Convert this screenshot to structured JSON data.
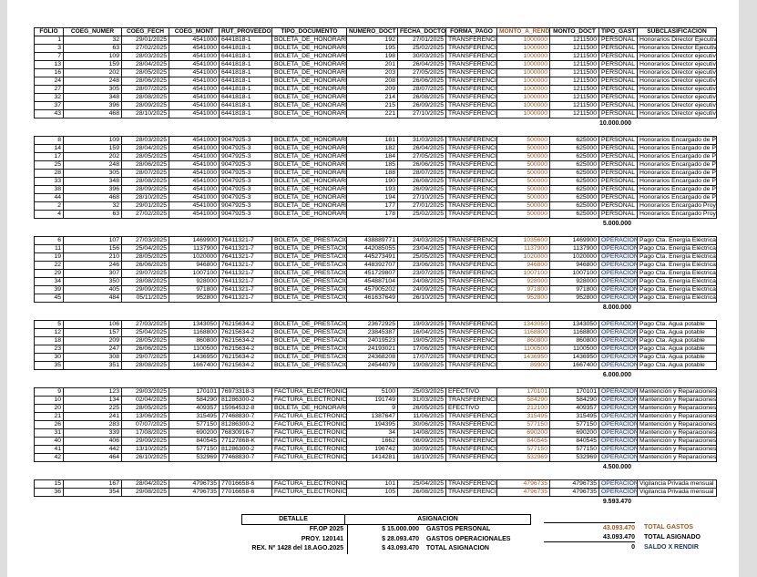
{
  "page": {
    "background": "#ffffff",
    "edge_color": "#dedede",
    "accent_color": "#a5561f",
    "navy_color": "#1f3864"
  },
  "table": {
    "columns": [
      {
        "key": "folio",
        "label": "FOLIO",
        "align": "right"
      },
      {
        "key": "coeg_numer",
        "label": "COEG_NUMER",
        "align": "right"
      },
      {
        "key": "coeg_fech",
        "label": "COEG_FECH",
        "align": "right"
      },
      {
        "key": "coeg_mont",
        "label": "COEG_MONT",
        "align": "right"
      },
      {
        "key": "rut_proveedo",
        "label": "RUT_PROVEEDO",
        "align": "left"
      },
      {
        "key": "tipo_documento",
        "label": "TIPO_DOCUMENTO",
        "align": "left"
      },
      {
        "key": "numero_doct",
        "label": "NUMERO_DOCT",
        "align": "right"
      },
      {
        "key": "fecha_docto",
        "label": "FECHA_DOCTO",
        "align": "right"
      },
      {
        "key": "forma_pago",
        "label": "FORMA_PAGO",
        "align": "left"
      },
      {
        "key": "monto_a_rendi",
        "label": "MONTO_A_RENDI",
        "align": "right",
        "accent": true
      },
      {
        "key": "monto_doct",
        "label": "MONTO_DOCT",
        "align": "right"
      },
      {
        "key": "tipo_gast",
        "label": "TIPO_GAST",
        "align": "left"
      },
      {
        "key": "subclasificacion",
        "label": "SUBCLASIFICACION",
        "align": "left"
      }
    ],
    "blocks": [
      {
        "subtotal": "10.000.000",
        "rows": [
          [
            "1",
            "32",
            "29/01/2025",
            "4541000",
            "6441818-1",
            "BOLETA_DE_HONORARIOS_ELE",
            "192",
            "27/01/2025",
            "TRANSFERENCIA",
            "1000000",
            "1211500",
            "PERSONAL",
            "Honorarios Director Ejecutivo"
          ],
          [
            "3",
            "63",
            "27/02/2025",
            "4541000",
            "6441818-1",
            "BOLETA_DE_HONORARIOS_ELE",
            "195",
            "25/02/2025",
            "TRANSFERENCIA",
            "1000000",
            "1211500",
            "PERSONAL",
            "Honorarios Director Ejecutivo"
          ],
          [
            "7",
            "109",
            "28/03/2025",
            "4541000",
            "6441818-1",
            "BOLETA_DE_HONORARIOS_ELE",
            "198",
            "30/03/2025",
            "TRANSFERENCIA",
            "1000000",
            "1211500",
            "PERSONAL",
            "Honorarios Director ejecutivo"
          ],
          [
            "13",
            "159",
            "28/04/2025",
            "4541000",
            "6441818-1",
            "BOLETA_DE_HONORARIOS_ELE",
            "201",
            "26/04/2025",
            "TRANSFERENCIA",
            "1000000",
            "1211500",
            "PERSONAL",
            "Honorarios Director ejecutivo"
          ],
          [
            "16",
            "202",
            "28/05/2025",
            "4541000",
            "6441818-1",
            "BOLETA_DE_HONORARIOS_ELE",
            "203",
            "27/05/2025",
            "TRANSFERENCIA",
            "1000000",
            "1211500",
            "PERSONAL",
            "Honorarios Director ejecutivo"
          ],
          [
            "24",
            "248",
            "28/06/2025",
            "4541000",
            "6441818-1",
            "BOLETA_DE_HONORARIOS_ELE",
            "208",
            "26/06/2025",
            "TRANSFERENCIA",
            "1000000",
            "1211500",
            "PERSONAL",
            "Honorarios Director ejecutivo"
          ],
          [
            "27",
            "305",
            "28/07/2025",
            "4541000",
            "6441818-1",
            "BOLETA_DE_HONORARIOS_ELE",
            "209",
            "28/07/2025",
            "TRANSFERENCIA",
            "1000000",
            "1211500",
            "PERSONAL",
            "Honorarios Director ejecutivo"
          ],
          [
            "32",
            "348",
            "28/08/2025",
            "4541000",
            "6441818-1",
            "BOLETA_DE_HONORARIOS_ELE",
            "214",
            "26/08/2025",
            "TRANSFERENCIA",
            "1000000",
            "1211500",
            "PERSONAL",
            "Honorarios Director ejecutivo"
          ],
          [
            "37",
            "396",
            "28/09/2025",
            "4541000",
            "6441818-1",
            "BOLETA_DE_HONORARIOS_ELE",
            "215",
            "26/09/2025",
            "TRANSFERENCIA",
            "1000000",
            "1211500",
            "PERSONAL",
            "Honorarios Director ejecutivo"
          ],
          [
            "43",
            "468",
            "28/10/2025",
            "4541000",
            "6441818-1",
            "BOLETA_DE_HONORARIOS_ELE",
            "221",
            "27/10/2025",
            "TRANSFERENCIA",
            "1000000",
            "1211500",
            "PERSONAL",
            "Honorarios Director ejecutivo"
          ]
        ]
      },
      {
        "subtotal": "5.000.000",
        "rows": [
          [
            "8",
            "109",
            "28/03/2025",
            "4541000",
            "9047925-3",
            "BOLETA_DE_HONORARIOS_ELE",
            "181",
            "31/03/2025",
            "TRANSFERENCIA",
            "500000",
            "625000",
            "PERSONAL",
            "Honorarios Encargado de Proye"
          ],
          [
            "14",
            "159",
            "28/04/2025",
            "4541000",
            "9047925-3",
            "BOLETA_DE_HONORARIOS_ELE",
            "182",
            "26/04/2025",
            "TRANSFERENCIA",
            "500000",
            "625000",
            "PERSONAL",
            "Honorarios Encargado de Proye"
          ],
          [
            "17",
            "202",
            "28/05/2025",
            "4541000",
            "9047925-3",
            "BOLETA_DE_HONORARIOS_ELE",
            "184",
            "27/05/2025",
            "TRANSFERENCIA",
            "500000",
            "625000",
            "PERSONAL",
            "Honorarios Encargado de Proye"
          ],
          [
            "25",
            "248",
            "28/06/2025",
            "4541000",
            "9047925-3",
            "BOLETA_DE_HONORARIOS_ELE",
            "185",
            "26/06/2025",
            "TRANSFERENCIA",
            "500000",
            "625000",
            "PERSONAL",
            "Honorarios Encargado de Proye"
          ],
          [
            "28",
            "305",
            "28/07/2025",
            "4541000",
            "9047925-3",
            "BOLETA_DE_HONORARIOS_ELE",
            "188",
            "28/07/2025",
            "TRANSFERENCIA",
            "500000",
            "625000",
            "PERSONAL",
            "Honorarios Encargado de Proye"
          ],
          [
            "33",
            "348",
            "28/08/2025",
            "4541000",
            "9047925-3",
            "BOLETA_DE_HONORARIOS_ELE",
            "190",
            "26/08/2025",
            "TRANSFERENCIA",
            "500000",
            "625000",
            "PERSONAL",
            "Honorarios Encargado de Proye"
          ],
          [
            "38",
            "396",
            "28/09/2025",
            "4541000",
            "9047925-3",
            "BOLETA_DE_HONORARIOS_ELE",
            "193",
            "26/09/2025",
            "TRANSFERENCIA",
            "500000",
            "625000",
            "PERSONAL",
            "Honorarios Encargado de Proye"
          ],
          [
            "44",
            "468",
            "28/10/2025",
            "4541000",
            "9047925-3",
            "BOLETA_DE_HONORARIOS_ELE",
            "194",
            "27/10/2025",
            "TRANSFERENCIA",
            "500000",
            "625000",
            "PERSONAL",
            "Honorarios Encargado de Proye"
          ],
          [
            "2",
            "32",
            "29/01/2025",
            "4541000",
            "9047925-3",
            "BOLETA_DE_HONORARIOS_ELE",
            "177",
            "27/01/2025",
            "TRANSFERENCIA",
            "500000",
            "625000",
            "PERSONAL",
            "Honorarios Encargado Proyecto"
          ],
          [
            "4",
            "63",
            "27/02/2025",
            "4541000",
            "9047925-3",
            "BOLETA_DE_HONORARIOS_ELE",
            "178",
            "25/02/2025",
            "TRANSFERENCIA",
            "500000",
            "625000",
            "PERSONAL",
            "Honorarios Encargado Proyecto"
          ]
        ]
      },
      {
        "subtotal": "8.000.000",
        "rows": [
          [
            "6",
            "107",
            "27/03/2025",
            "1469900",
            "76411321-7",
            "BOLETA_DE_PRESTACION_SERV",
            "438889771",
            "24/03/2025",
            "TRANSFERENCIA",
            "1035600",
            "1469900",
            "OPERACION",
            "Pago Cta. Energía Eléctrica"
          ],
          [
            "11",
            "156",
            "25/04/2025",
            "1137900",
            "76411321-7",
            "BOLETA_DE_PRESTACION_SERV",
            "442085055",
            "23/04/2025",
            "TRANSFERENCIA",
            "1137900",
            "1137900",
            "OPERACION",
            "Pago Cta. Energía Eléctrica"
          ],
          [
            "19",
            "210",
            "28/05/2025",
            "1020000",
            "76411321-7",
            "BOLETA_DE_PRESTACION_SERV",
            "445273491",
            "25/05/2025",
            "TRANSFERENCIA",
            "1020000",
            "1020000",
            "OPERACION",
            "Pago Cta. Energía Eléctrica"
          ],
          [
            "22",
            "246",
            "26/06/2025",
            "946800",
            "76411321-7",
            "BOLETA_DE_PRESTACION_SERV",
            "448392707",
            "23/06/2025",
            "TRANSFERENCIA",
            "946800",
            "946800",
            "OPERACION",
            "Pago Cta. Energía Eléctrica"
          ],
          [
            "29",
            "307",
            "29/07/2025",
            "1007100",
            "76411321-7",
            "BOLETA_DE_PRESTACION_SERV",
            "451729807",
            "23/07/2025",
            "TRANSFERENCIA",
            "1007100",
            "1007100",
            "OPERACION",
            "Pago Cta. Energía Eléctrica"
          ],
          [
            "34",
            "350",
            "28/08/2025",
            "928000",
            "76411321-7",
            "BOLETA_DE_PRESTACION_SERV",
            "454887104",
            "24/08/2025",
            "TRANSFERENCIA",
            "928000",
            "928000",
            "OPERACION",
            "Pago Cta. Energía Eléctrica"
          ],
          [
            "39",
            "405",
            "29/09/2025",
            "971800",
            "76411321-7",
            "BOLETA_DE_PRESTACION_SERV",
            "457905202",
            "24/09/2025",
            "TRANSFERENCIA",
            "971800",
            "971800",
            "OPERACION",
            "Pago Cta. Energía Eléctrica"
          ],
          [
            "45",
            "484",
            "05/11/2025",
            "952800",
            "76411321-7",
            "BOLETA_DE_PRESTACION_SERV",
            "461637649",
            "26/10/2025",
            "TRANSFERENCIA",
            "952800",
            "952800",
            "OPERACION",
            "Pago Cta. Energía Eléctrica"
          ]
        ]
      },
      {
        "subtotal": "6.000.000",
        "rows": [
          [
            "5",
            "106",
            "27/03/2025",
            "1343050",
            "76215634-2",
            "BOLETA_DE_PRESTACION_SERV",
            "23672925",
            "19/03/2025",
            "TRANSFERENCIA",
            "1343050",
            "1343050",
            "OPERACION",
            "Pago Cta. Agua potable"
          ],
          [
            "12",
            "157",
            "25/04/2025",
            "1168800",
            "76215634-2",
            "BOLETA_DE_PRESTACION_SERV",
            "23845387",
            "16/04/2025",
            "TRANSFERENCIA",
            "1168800",
            "1168800",
            "OPERACION",
            "Pago Cta. Agua potable"
          ],
          [
            "18",
            "209",
            "28/05/2025",
            "860800",
            "76215634-2",
            "BOLETA_DE_PRESTACION_SERV",
            "24019523",
            "19/05/2025",
            "TRANSFERENCIA",
            "860800",
            "860800",
            "OPERACION",
            "Pago Cta. Agua potable"
          ],
          [
            "23",
            "247",
            "26/06/2025",
            "1100500",
            "76215634-2",
            "BOLETA_DE_PRESTACION_SERV",
            "24193021",
            "17/06/2025",
            "TRANSFERENCIA",
            "1100500",
            "1100500",
            "OPERACION",
            "Pago Cta. Agua potable"
          ],
          [
            "30",
            "308",
            "29/07/2025",
            "1436950",
            "76215634-2",
            "BOLETA_DE_PRESTACION_SERV",
            "24368208",
            "17/07/2025",
            "TRANSFERENCIA",
            "1436950",
            "1436950",
            "OPERACION",
            "Pago Cta. Agua potable"
          ],
          [
            "35",
            "351",
            "28/08/2025",
            "1667400",
            "76215634-2",
            "BOLETA_DE_PRESTACION_SERV",
            "24544079",
            "19/08/2025",
            "TRANSFERENCIA",
            "89900",
            "1667400",
            "OPERACION",
            "Pago Cta. Agua potable"
          ]
        ]
      },
      {
        "subtotal": "4.500.000",
        "rows": [
          [
            "9",
            "123",
            "29/03/2025",
            "170101",
            "76973318-3",
            "FACTURA_ELECTRONICA",
            "5100",
            "25/03/2025",
            "EFECTIVO",
            "170101",
            "170101",
            "OPERACION",
            "Mantención y Reparaciones"
          ],
          [
            "10",
            "134",
            "02/04/2025",
            "584290",
            "81286300-2",
            "FACTURA_ELECTRONICA",
            "191749",
            "31/03/2025",
            "TRANSFERENCIA",
            "584290",
            "584290",
            "OPERACION",
            "Mantención y Reparaciones"
          ],
          [
            "20",
            "225",
            "28/05/2025",
            "409357",
            "15064532-8",
            "BOLETA_DE_HONORARIOS_ELE",
            "9",
            "26/05/2025",
            "EFECTIVO",
            "212100",
            "409357",
            "OPERACION",
            "Mantención y Reparaciones"
          ],
          [
            "21",
            "241",
            "13/06/2025",
            "315495",
            "77468830-7",
            "FACTURA_ELECTRONICA",
            "1387647",
            "11/06/2025",
            "TRANSFERENCIA",
            "315495",
            "315495",
            "OPERACION",
            "Mantención y Reparaciones"
          ],
          [
            "26",
            "283",
            "07/07/2025",
            "577150",
            "81286300-2",
            "FACTURA_ELECTRONICA",
            "194395",
            "30/06/2025",
            "TRANSFERENCIA",
            "577150",
            "577150",
            "OPERACION",
            "Mantención y Reparaciones"
          ],
          [
            "31",
            "339",
            "17/08/2025",
            "690200",
            "76830916-7",
            "FACTURA_ELECTRONICA",
            "34",
            "14/08/2025",
            "TRANSFERENCIA",
            "690200",
            "690200",
            "OPERACION",
            "Mantención y Reparaciones"
          ],
          [
            "40",
            "406",
            "29/09/2025",
            "840545",
            "77127868-K",
            "FACTURA_ELECTRONICA",
            "1662",
            "08/09/2025",
            "TRANSFERENCIA",
            "840545",
            "840545",
            "OPERACION",
            "Mantención y Reparaciones"
          ],
          [
            "41",
            "442",
            "13/10/2025",
            "577150",
            "81286300-2",
            "FACTURA_ELECTRONICA",
            "196742",
            "30/09/2025",
            "TRANSFERENCIA",
            "577150",
            "577150",
            "OPERACION",
            "Mantención y Reparaciones"
          ],
          [
            "42",
            "464",
            "26/10/2025",
            "532969",
            "77468830-7",
            "FACTURA_ELECTRONICA",
            "1414281",
            "16/10/2025",
            "TRANSFERENCIA",
            "532969",
            "532969",
            "OPERACION",
            "Mantención y Reparaciones"
          ]
        ]
      },
      {
        "subtotal": "9.593.470",
        "rows": [
          [
            "15",
            "167",
            "28/04/2025",
            "4796735",
            "77016658-6",
            "FACTURA_ELECTRONICA",
            "101",
            "25/04/2025",
            "TRANSFERENCIA",
            "4796735",
            "4796735",
            "OPERACION",
            "Vigilancia Privada mensual"
          ],
          [
            "36",
            "354",
            "29/08/2025",
            "4796735",
            "77016658-6",
            "FACTURA_ELECTRONICA",
            "105",
            "26/08/2025",
            "TRANSFERENCIA",
            "4796735",
            "4796735",
            "OPERACION",
            "Vigilancia Privada mensual"
          ]
        ]
      }
    ]
  },
  "footer": {
    "detalle_header": "DETALLE",
    "asignacion_header": "ASIGNACION",
    "rows": [
      {
        "detalle": "FF.OP 2025",
        "monto": "$ 15.000.000",
        "label": "GASTOS PERSONAL"
      },
      {
        "detalle": "PROY. 120141",
        "monto": "$ 28.093.470",
        "label": "GASTOS OPERACIONALES"
      },
      {
        "detalle": "REX. Nº 1428 del 18.AGO.2025",
        "monto": "$ 43.093.470",
        "label": "TOTAL ASIGNACION"
      }
    ],
    "summary": [
      {
        "value": "43.093.470",
        "label": "TOTAL GASTOS"
      },
      {
        "value": "43.093.470",
        "label": "TOTAL ASIGNADO"
      },
      {
        "value": "0",
        "label": "SALDO X RENDIR"
      }
    ]
  }
}
